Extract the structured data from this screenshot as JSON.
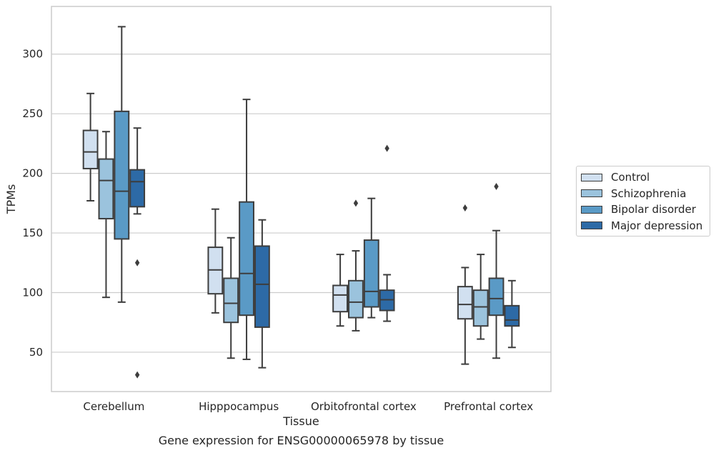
{
  "chart_data": {
    "type": "box",
    "caption": "Gene expression for ENSG00000065978 by tissue",
    "xlabel": "Tissue",
    "ylabel": "TPMs",
    "ylim": [
      17,
      340
    ],
    "yticks": [
      50,
      100,
      150,
      200,
      250,
      300
    ],
    "grid": true,
    "legend_position": "right",
    "categories": [
      "Cerebellum",
      "Hipppocampus",
      "Orbitofrontal cortex",
      "Prefrontal cortex"
    ],
    "series": [
      {
        "name": "Control",
        "color": "#d1e0f0",
        "boxes": [
          {
            "whisker_low": 177,
            "q1": 204,
            "median": 218,
            "q3": 236,
            "whisker_high": 267,
            "outliers": []
          },
          {
            "whisker_low": 83,
            "q1": 99,
            "median": 119,
            "q3": 138,
            "whisker_high": 170,
            "outliers": []
          },
          {
            "whisker_low": 72,
            "q1": 84,
            "median": 98,
            "q3": 106,
            "whisker_high": 132,
            "outliers": []
          },
          {
            "whisker_low": 40,
            "q1": 78,
            "median": 90,
            "q3": 105,
            "whisker_high": 121,
            "outliers": [
              171
            ]
          }
        ]
      },
      {
        "name": "Schizophrenia",
        "color": "#9bc3dd",
        "boxes": [
          {
            "whisker_low": 96,
            "q1": 162,
            "median": 194,
            "q3": 212,
            "whisker_high": 235,
            "outliers": []
          },
          {
            "whisker_low": 45,
            "q1": 75,
            "median": 91,
            "q3": 112,
            "whisker_high": 146,
            "outliers": []
          },
          {
            "whisker_low": 68,
            "q1": 79,
            "median": 92,
            "q3": 110,
            "whisker_high": 135,
            "outliers": [
              175
            ]
          },
          {
            "whisker_low": 61,
            "q1": 72,
            "median": 88,
            "q3": 102,
            "whisker_high": 132,
            "outliers": []
          }
        ]
      },
      {
        "name": "Bipolar disorder",
        "color": "#5a9ac6",
        "boxes": [
          {
            "whisker_low": 92,
            "q1": 145,
            "median": 185,
            "q3": 252,
            "whisker_high": 323,
            "outliers": []
          },
          {
            "whisker_low": 44,
            "q1": 81,
            "median": 116,
            "q3": 176,
            "whisker_high": 262,
            "outliers": []
          },
          {
            "whisker_low": 79,
            "q1": 88,
            "median": 101,
            "q3": 144,
            "whisker_high": 179,
            "outliers": []
          },
          {
            "whisker_low": 45,
            "q1": 81,
            "median": 95,
            "q3": 112,
            "whisker_high": 152,
            "outliers": [
              189
            ]
          }
        ]
      },
      {
        "name": "Major depression",
        "color": "#2d6aa6",
        "boxes": [
          {
            "whisker_low": 166,
            "q1": 172,
            "median": 193,
            "q3": 203,
            "whisker_high": 238,
            "outliers": [
              125,
              31
            ]
          },
          {
            "whisker_low": 37,
            "q1": 71,
            "median": 107,
            "q3": 139,
            "whisker_high": 161,
            "outliers": []
          },
          {
            "whisker_low": 76,
            "q1": 85,
            "median": 94,
            "q3": 102,
            "whisker_high": 115,
            "outliers": [
              221
            ]
          },
          {
            "whisker_low": 54,
            "q1": 72,
            "median": 77,
            "q3": 89,
            "whisker_high": 110,
            "outliers": []
          }
        ]
      }
    ]
  }
}
